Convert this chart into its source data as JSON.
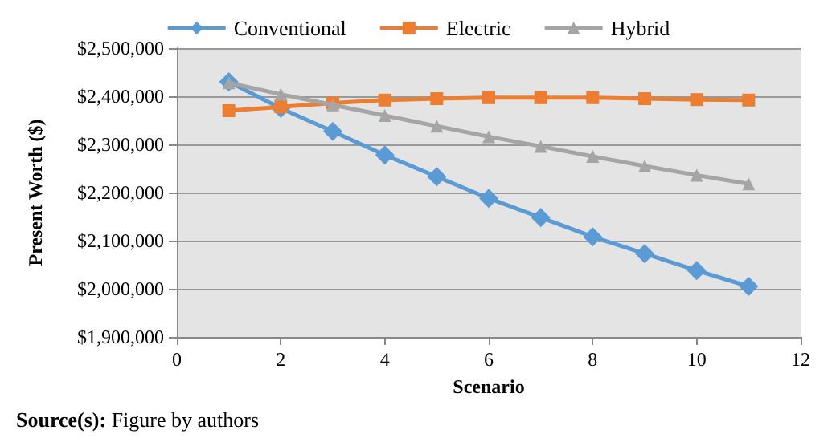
{
  "chart_data": {
    "type": "line",
    "xlabel": "Scenario",
    "ylabel": "Present Worth ($)",
    "annotations": [
      "Source(s): Figure by authors"
    ],
    "x": [
      1,
      2,
      3,
      4,
      5,
      6,
      7,
      8,
      9,
      10,
      11
    ],
    "series": [
      {
        "name": "Conventional",
        "color": "#5b9bd5",
        "marker": "diamond",
        "values": [
          2430000,
          2375000,
          2327000,
          2278000,
          2233000,
          2188000,
          2148000,
          2108000,
          2073000,
          2038000,
          2005000
        ]
      },
      {
        "name": "Electric",
        "color": "#ed7d31",
        "marker": "square",
        "values": [
          2370000,
          2378000,
          2386000,
          2392000,
          2395000,
          2397000,
          2397000,
          2397000,
          2395000,
          2393000,
          2392000
        ]
      },
      {
        "name": "Hybrid",
        "color": "#a5a5a5",
        "marker": "triangle",
        "values": [
          2428000,
          2404000,
          2382000,
          2360000,
          2338000,
          2316000,
          2296000,
          2275000,
          2255000,
          2236000,
          2218000
        ]
      }
    ],
    "xlim": [
      0,
      12
    ],
    "xticks": [
      0,
      2,
      4,
      6,
      8,
      10,
      12
    ],
    "ylim": [
      1900000,
      2500000
    ],
    "yticks": [
      {
        "value": 1900000,
        "label": "$1,900,000"
      },
      {
        "value": 2000000,
        "label": "$2,000,000"
      },
      {
        "value": 2100000,
        "label": "$2,100,000"
      },
      {
        "value": 2200000,
        "label": "$2,200,000"
      },
      {
        "value": 2300000,
        "label": "$2,300,000"
      },
      {
        "value": 2400000,
        "label": "$2,400,000"
      },
      {
        "value": 2500000,
        "label": "$2,500,000"
      }
    ],
    "grid": "y",
    "legend": "top",
    "line_style": "solid"
  }
}
